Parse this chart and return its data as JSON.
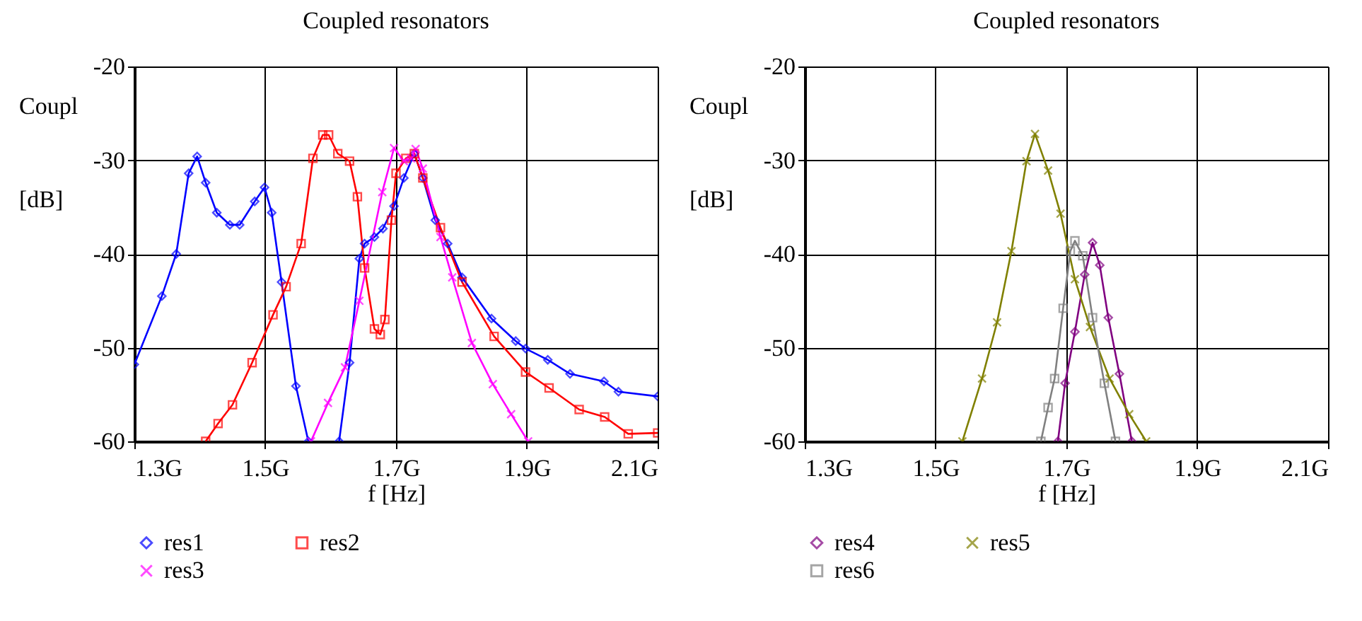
{
  "chart_data": [
    {
      "type": "line",
      "title": "Coupled resonators",
      "xlabel": "f [Hz]",
      "ylabel": "Coupl [dB]",
      "xlim": [
        1.3,
        2.1
      ],
      "xticks": [
        {
          "value": 1.3,
          "label": "1.3G"
        },
        {
          "value": 1.5,
          "label": "1.5G"
        },
        {
          "value": 1.7,
          "label": "1.7G"
        },
        {
          "value": 1.9,
          "label": "1.9G"
        },
        {
          "value": 2.1,
          "label": "2.1G"
        }
      ],
      "ylim": [
        -60,
        -20
      ],
      "yticks": [
        -60,
        -50,
        -40,
        -30,
        -20
      ],
      "grid": true,
      "legend": "bottom",
      "series": [
        {
          "name": "res1",
          "color": "#0000ff",
          "marker": "diamond",
          "x": [
            1.3,
            1.342,
            1.364,
            1.383,
            1.396,
            1.409,
            1.426,
            1.446,
            1.461,
            1.484,
            1.499,
            1.51,
            1.525,
            1.547,
            1.566,
            1.59,
            1.613,
            1.629,
            1.644,
            1.652,
            1.667,
            1.68,
            1.697,
            1.712,
            1.728,
            1.741,
            1.76,
            1.779,
            1.801,
            1.846,
            1.883,
            1.898,
            1.932,
            1.966,
            2.018,
            2.04,
            2.1
          ],
          "values": [
            -51.8,
            -44.5,
            -40,
            -31.4,
            -29.6,
            -32.4,
            -35.6,
            -36.9,
            -36.9,
            -34.4,
            -32.9,
            -35.6,
            -43,
            -54.1,
            -60,
            null,
            -60,
            -51.6,
            -40.5,
            -38.9,
            -38.2,
            -37.3,
            -34.9,
            -31.9,
            -29.3,
            -31.9,
            -36.4,
            -38.9,
            -42.5,
            -46.9,
            -49.3,
            -50.1,
            -51.3,
            -52.8,
            -53.6,
            -54.7,
            -55.2
          ]
        },
        {
          "name": "res2",
          "color": "#ff0000",
          "marker": "square",
          "x": [
            1.409,
            1.428,
            1.45,
            1.48,
            1.512,
            1.532,
            1.555,
            1.573,
            1.588,
            1.597,
            1.611,
            1.629,
            1.641,
            1.652,
            1.667,
            1.676,
            1.683,
            1.693,
            1.7,
            1.715,
            1.728,
            1.741,
            1.768,
            1.801,
            1.85,
            1.898,
            1.934,
            1.98,
            2.019,
            2.055,
            2.1
          ],
          "values": [
            -60,
            -58.1,
            -56.1,
            -51.6,
            -46.5,
            -43.5,
            -38.9,
            -29.8,
            -27.3,
            -27.3,
            -29.3,
            -30.1,
            -33.9,
            -41.5,
            -48,
            -48.6,
            -47,
            -36.4,
            -31.4,
            -29.8,
            -29.3,
            -31.9,
            -37.2,
            -43,
            -48.8,
            -52.6,
            -54.3,
            -56.6,
            -57.4,
            -59.2,
            -59.1
          ]
        },
        {
          "name": "res3",
          "color": "#ff00ff",
          "marker": "cross",
          "x": [
            1.57,
            1.596,
            1.622,
            1.644,
            1.679,
            1.697,
            1.712,
            1.723,
            1.73,
            1.741,
            1.768,
            1.786,
            1.816,
            1.848,
            1.876,
            1.902
          ],
          "values": [
            -60,
            -55.9,
            -52.1,
            -45,
            -33.4,
            -28.7,
            -30.1,
            -29.8,
            -28.8,
            -30.9,
            -38.2,
            -42.5,
            -49.5,
            -53.9,
            -57.1,
            -60
          ]
        }
      ]
    },
    {
      "type": "line",
      "title": "Coupled resonators",
      "xlabel": "f [Hz]",
      "ylabel": "Coupl [dB]",
      "xlim": [
        1.3,
        2.1
      ],
      "xticks": [
        {
          "value": 1.3,
          "label": "1.3G"
        },
        {
          "value": 1.5,
          "label": "1.5G"
        },
        {
          "value": 1.7,
          "label": "1.7G"
        },
        {
          "value": 1.9,
          "label": "1.9G"
        },
        {
          "value": 2.1,
          "label": "2.1G"
        }
      ],
      "ylim": [
        -60,
        -20
      ],
      "yticks": [
        -60,
        -50,
        -40,
        -30,
        -20
      ],
      "grid": true,
      "legend": "bottom",
      "series": [
        {
          "name": "res4",
          "color": "#800080",
          "marker": "diamond",
          "x": [
            1.687,
            1.698,
            1.713,
            1.728,
            1.74,
            1.751,
            1.764,
            1.781,
            1.8
          ],
          "values": [
            -60,
            -53.8,
            -48.3,
            -42.2,
            -38.8,
            -41.2,
            -46.8,
            -52.8,
            -60
          ]
        },
        {
          "name": "res5",
          "color": "#808000",
          "marker": "cross",
          "x": [
            1.541,
            1.571,
            1.594,
            1.616,
            1.639,
            1.652,
            1.672,
            1.691,
            1.713,
            1.736,
            1.766,
            1.796,
            1.822
          ],
          "values": [
            -60,
            -53.3,
            -47.3,
            -39.7,
            -30.1,
            -27.2,
            -31.1,
            -35.7,
            -42.7,
            -47.8,
            -53.3,
            -57.1,
            -60
          ]
        },
        {
          "name": "res6",
          "color": "#808080",
          "marker": "square",
          "x": [
            1.661,
            1.672,
            1.682,
            1.695,
            1.706,
            1.713,
            1.725,
            1.74,
            1.758,
            1.775
          ],
          "values": [
            -60,
            -56.4,
            -53.3,
            -45.8,
            -39.7,
            -38.6,
            -40.2,
            -46.8,
            -53.8,
            -60
          ]
        }
      ]
    }
  ]
}
